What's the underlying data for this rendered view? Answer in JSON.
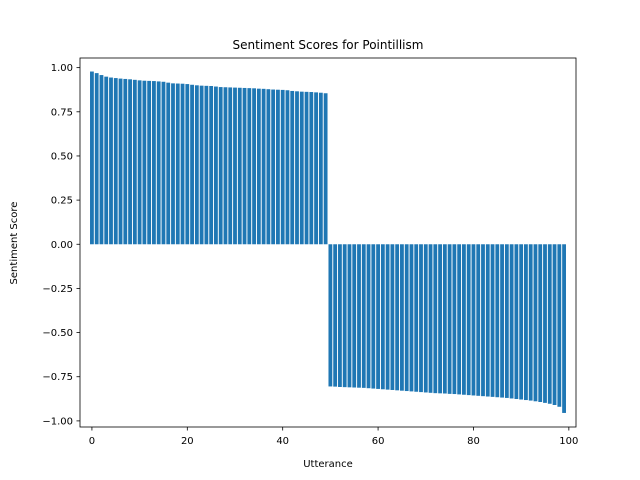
{
  "chart_data": {
    "type": "bar",
    "title": "Sentiment Scores for Pointillism",
    "xlabel": "Utterance",
    "ylabel": "Sentiment Score",
    "xlim": [
      -2.5,
      101.5
    ],
    "ylim": [
      -1.0346,
      1.0546
    ],
    "x_ticks": [
      0,
      20,
      40,
      60,
      80,
      100
    ],
    "x_tick_labels": [
      "0",
      "20",
      "40",
      "60",
      "80",
      "100"
    ],
    "y_ticks": [
      1.0,
      0.75,
      0.5,
      0.25,
      0.0,
      -0.25,
      -0.5,
      -0.75,
      -1.0
    ],
    "y_tick_labels": [
      "1.00",
      "0.75",
      "0.50",
      "0.25",
      "0.00",
      "−0.25",
      "−0.50",
      "−0.75",
      "−1.00"
    ],
    "grid": false,
    "bar_color": "#1f77b4",
    "x": [
      0,
      1,
      2,
      3,
      4,
      5,
      6,
      7,
      8,
      9,
      10,
      11,
      12,
      13,
      14,
      15,
      16,
      17,
      18,
      19,
      20,
      21,
      22,
      23,
      24,
      25,
      26,
      27,
      28,
      29,
      30,
      31,
      32,
      33,
      34,
      35,
      36,
      37,
      38,
      39,
      40,
      41,
      42,
      43,
      44,
      45,
      46,
      47,
      48,
      49,
      50,
      51,
      52,
      53,
      54,
      55,
      56,
      57,
      58,
      59,
      60,
      61,
      62,
      63,
      64,
      65,
      66,
      67,
      68,
      69,
      70,
      71,
      72,
      73,
      74,
      75,
      76,
      77,
      78,
      79,
      80,
      81,
      82,
      83,
      84,
      85,
      86,
      87,
      88,
      89,
      90,
      91,
      92,
      93,
      94,
      95,
      96,
      97,
      98,
      99
    ],
    "values": [
      0.978,
      0.969,
      0.958,
      0.949,
      0.944,
      0.941,
      0.938,
      0.936,
      0.934,
      0.931,
      0.928,
      0.926,
      0.925,
      0.924,
      0.922,
      0.92,
      0.915,
      0.911,
      0.91,
      0.909,
      0.907,
      0.903,
      0.9,
      0.898,
      0.897,
      0.896,
      0.893,
      0.89,
      0.889,
      0.888,
      0.887,
      0.886,
      0.885,
      0.884,
      0.883,
      0.881,
      0.88,
      0.878,
      0.876,
      0.875,
      0.874,
      0.872,
      0.868,
      0.866,
      0.864,
      0.863,
      0.862,
      0.86,
      0.858,
      0.855,
      -0.805,
      -0.806,
      -0.808,
      -0.809,
      -0.81,
      -0.811,
      -0.812,
      -0.813,
      -0.815,
      -0.817,
      -0.819,
      -0.821,
      -0.823,
      -0.825,
      -0.827,
      -0.829,
      -0.831,
      -0.833,
      -0.835,
      -0.837,
      -0.839,
      -0.841,
      -0.843,
      -0.844,
      -0.845,
      -0.847,
      -0.848,
      -0.85,
      -0.852,
      -0.854,
      -0.856,
      -0.858,
      -0.86,
      -0.862,
      -0.864,
      -0.866,
      -0.868,
      -0.87,
      -0.873,
      -0.876,
      -0.879,
      -0.882,
      -0.885,
      -0.889,
      -0.893,
      -0.898,
      -0.903,
      -0.91,
      -0.92,
      -0.955
    ]
  }
}
